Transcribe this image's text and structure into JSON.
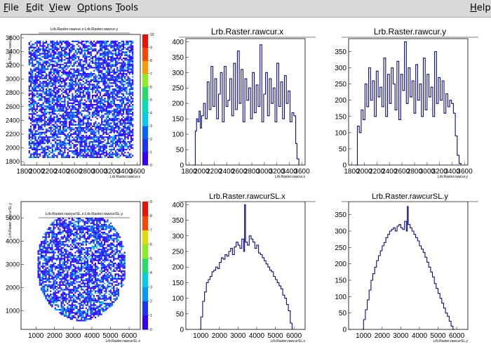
{
  "menu": {
    "file": {
      "first": "F",
      "rest": "ile"
    },
    "edit": {
      "first": "E",
      "rest": "dit"
    },
    "view": {
      "first": "V",
      "rest": "iew"
    },
    "options": {
      "first": "O",
      "rest": "ptions"
    },
    "tools": {
      "first": "T",
      "rest": "ools"
    },
    "help": {
      "first": "H",
      "rest": "elp"
    }
  },
  "colors": {
    "histogram": "#0a0a80",
    "frame": "#000000"
  },
  "chart_data": [
    {
      "type": "heatmap",
      "title": "Lrb.Raster.rawcur.x:Lrb.Raster.rawcur.y",
      "xlabel": "Lrb.Raster.rawcur.x",
      "ylabel": "Lrb.Raster.rawcur.y",
      "x_ticks": [
        "1800",
        "2000",
        "2200",
        "2400",
        "2600",
        "2800",
        "3000",
        "3200",
        "3400",
        "3600"
      ],
      "y_ticks": [
        "1800",
        "2000",
        "2200",
        "2400",
        "2600",
        "2800",
        "3000",
        "3200",
        "3400",
        "3600"
      ],
      "z_ticks": [
        "0",
        "1",
        "2",
        "3",
        "4",
        "5",
        "6",
        "7",
        "8",
        "9",
        "10"
      ],
      "shape": "square",
      "xlim": [
        1750,
        3650
      ],
      "ylim": [
        1750,
        3650
      ],
      "region": {
        "x": [
          1870,
          3520
        ],
        "y": [
          1860,
          3560
        ]
      },
      "zlim": [
        0,
        10
      ]
    },
    {
      "type": "bar",
      "title": "Lrb.Raster.rawcur.x",
      "xlabel": "Lrb.Raster.rawcur.x",
      "x_ticks": [
        "1800",
        "2000",
        "2200",
        "2400",
        "2600",
        "2800",
        "3000",
        "3200",
        "3400",
        "3600"
      ],
      "y_ticks": [
        "0",
        "50",
        "100",
        "150",
        "200",
        "250",
        "300",
        "350",
        "400"
      ],
      "xlim": [
        1750,
        3650
      ],
      "ylim": [
        0,
        410
      ],
      "x": [
        1860,
        1900,
        1920,
        1940,
        1960,
        1980,
        2000,
        2030,
        2060,
        2090,
        2120,
        2150,
        2180,
        2210,
        2240,
        2270,
        2300,
        2330,
        2360,
        2390,
        2420,
        2450,
        2480,
        2510,
        2540,
        2570,
        2600,
        2630,
        2660,
        2690,
        2720,
        2750,
        2780,
        2810,
        2840,
        2870,
        2900,
        2930,
        2960,
        2990,
        3020,
        3050,
        3080,
        3110,
        3140,
        3170,
        3200,
        3230,
        3260,
        3290,
        3320,
        3350,
        3380,
        3410,
        3440,
        3470,
        3500,
        3520,
        3550
      ],
      "values": [
        0,
        110,
        150,
        140,
        175,
        120,
        160,
        200,
        150,
        270,
        180,
        320,
        190,
        280,
        150,
        230,
        300,
        140,
        320,
        190,
        210,
        280,
        160,
        330,
        180,
        370,
        200,
        310,
        140,
        280,
        210,
        250,
        150,
        300,
        170,
        260,
        190,
        390,
        140,
        230,
        300,
        160,
        280,
        200,
        250,
        140,
        330,
        190,
        270,
        150,
        290,
        200,
        240,
        140,
        170,
        160,
        70,
        20,
        0
      ]
    },
    {
      "type": "bar",
      "title": "Lrb.Raster.rawcur.y",
      "xlabel": "Lrb.Raster.rawcur.y",
      "x_ticks": [
        "1800",
        "2000",
        "2200",
        "2400",
        "2600",
        "2800",
        "3000",
        "3200",
        "3400",
        "3600"
      ],
      "y_ticks": [
        "0",
        "50",
        "100",
        "150",
        "200",
        "250",
        "300",
        "350"
      ],
      "xlim": [
        1750,
        3650
      ],
      "ylim": [
        0,
        390
      ],
      "x": [
        1860,
        1890,
        1920,
        1950,
        1980,
        2010,
        2040,
        2070,
        2100,
        2130,
        2160,
        2190,
        2220,
        2250,
        2280,
        2310,
        2340,
        2370,
        2400,
        2430,
        2460,
        2490,
        2520,
        2550,
        2580,
        2610,
        2640,
        2670,
        2700,
        2730,
        2760,
        2790,
        2820,
        2850,
        2880,
        2910,
        2940,
        2970,
        3000,
        3030,
        3060,
        3090,
        3120,
        3150,
        3180,
        3210,
        3240,
        3270,
        3300,
        3330,
        3360,
        3390,
        3420,
        3450,
        3480,
        3510,
        3540
      ],
      "values": [
        0,
        120,
        100,
        170,
        140,
        250,
        180,
        300,
        200,
        260,
        150,
        290,
        210,
        240,
        180,
        330,
        150,
        280,
        190,
        300,
        250,
        170,
        320,
        140,
        280,
        230,
        380,
        190,
        300,
        210,
        260,
        160,
        310,
        200,
        250,
        150,
        330,
        170,
        280,
        210,
        240,
        150,
        350,
        190,
        270,
        200,
        260,
        160,
        220,
        180,
        200,
        190,
        160,
        90,
        30,
        5,
        0
      ]
    },
    {
      "type": "heatmap",
      "title": "Lrb.Raster.rawcurSL.x:Lrb.Raster.rawcurSL.y",
      "xlabel": "Lrb.Raster.rawcurSL.x",
      "ylabel": "Lrb.Raster.rawcurSL.y",
      "x_ticks": [
        "1000",
        "2000",
        "3000",
        "4000",
        "5000",
        "6000"
      ],
      "y_ticks": [
        "1000",
        "2000",
        "3000",
        "4000",
        "5000"
      ],
      "z_ticks": [
        "0",
        "1",
        "2",
        "3",
        "4",
        "5",
        "6",
        "7",
        "8",
        "9"
      ],
      "shape": "disk",
      "xlim": [
        200,
        6600
      ],
      "ylim": [
        200,
        5700
      ],
      "region": {
        "x": [
          1000,
          5800
        ],
        "y": [
          600,
          5400
        ]
      },
      "zlim": [
        0,
        9
      ]
    },
    {
      "type": "bar",
      "title": "Lrb.Raster.rawcurSL.x",
      "xlabel": "Lrb.Raster.rawcurSL.x",
      "x_ticks": [
        "1000",
        "2000",
        "3000",
        "4000",
        "5000",
        "6000"
      ],
      "y_ticks": [
        "0",
        "50",
        "100",
        "150",
        "200",
        "250",
        "300",
        "350",
        "400"
      ],
      "xlim": [
        200,
        6600
      ],
      "ylim": [
        0,
        410
      ],
      "x": [
        900,
        1000,
        1100,
        1200,
        1300,
        1400,
        1500,
        1600,
        1700,
        1800,
        1900,
        2000,
        2100,
        2200,
        2300,
        2400,
        2500,
        2600,
        2700,
        2800,
        2900,
        3000,
        3100,
        3200,
        3300,
        3350,
        3400,
        3500,
        3600,
        3700,
        3800,
        3900,
        4000,
        4100,
        4200,
        4300,
        4400,
        4500,
        4600,
        4700,
        4800,
        4900,
        5000,
        5100,
        5200,
        5300,
        5400,
        5500,
        5600,
        5700,
        5800,
        5900
      ],
      "values": [
        0,
        40,
        90,
        120,
        150,
        160,
        170,
        185,
        190,
        200,
        195,
        215,
        230,
        225,
        240,
        235,
        250,
        260,
        240,
        265,
        280,
        270,
        260,
        290,
        250,
        400,
        280,
        270,
        300,
        290,
        280,
        260,
        270,
        245,
        240,
        230,
        220,
        210,
        200,
        190,
        185,
        170,
        160,
        150,
        140,
        130,
        110,
        100,
        80,
        60,
        20,
        0
      ]
    },
    {
      "type": "bar",
      "title": "Lrb.Raster.rawcurSL.y",
      "xlabel": "Lrb.Raster.rawcurSL.y",
      "x_ticks": [
        "1000",
        "2000",
        "3000",
        "4000",
        "5000",
        "6000"
      ],
      "y_ticks": [
        "0",
        "50",
        "100",
        "150",
        "200",
        "250",
        "300",
        "350"
      ],
      "xlim": [
        200,
        6600
      ],
      "ylim": [
        0,
        390
      ],
      "x": [
        900,
        1000,
        1100,
        1200,
        1300,
        1400,
        1500,
        1600,
        1700,
        1800,
        1900,
        2000,
        2100,
        2200,
        2300,
        2400,
        2500,
        2600,
        2700,
        2800,
        2900,
        3000,
        3100,
        3200,
        3300,
        3350,
        3400,
        3500,
        3600,
        3700,
        3800,
        3900,
        4000,
        4100,
        4200,
        4300,
        4400,
        4500,
        4600,
        4700,
        4800,
        4900,
        5000,
        5100,
        5200,
        5300,
        5400,
        5500,
        5600,
        5700,
        5800,
        5900
      ],
      "values": [
        0,
        30,
        60,
        90,
        120,
        150,
        170,
        190,
        210,
        225,
        240,
        255,
        265,
        280,
        290,
        300,
        305,
        310,
        300,
        315,
        320,
        310,
        305,
        330,
        300,
        375,
        320,
        310,
        300,
        290,
        280,
        270,
        255,
        245,
        235,
        220,
        205,
        190,
        175,
        160,
        140,
        125,
        110,
        95,
        80,
        65,
        50,
        40,
        25,
        10,
        0,
        0
      ]
    }
  ]
}
